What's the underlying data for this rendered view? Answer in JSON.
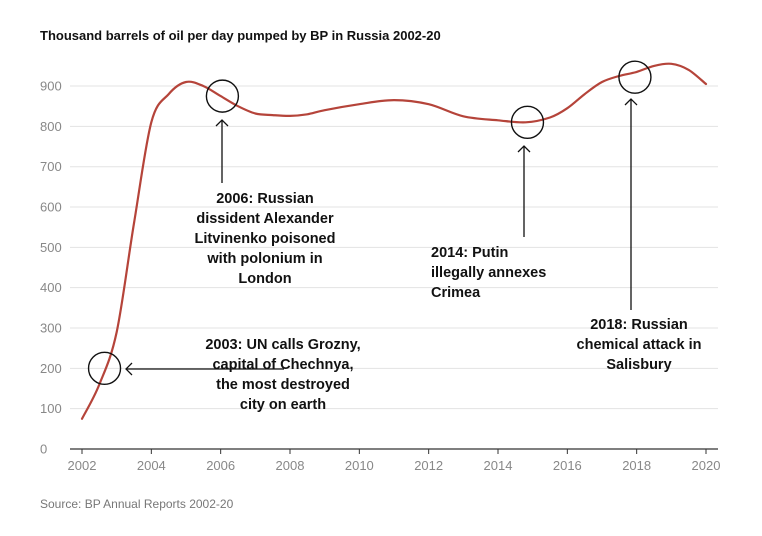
{
  "chart_data": {
    "type": "line",
    "title": "Thousand barrels of oil per day pumped by BP in Russia 2002-20",
    "source": "Source: BP Annual Reports 2002-20",
    "xlabel": "",
    "ylabel": "",
    "xlim": [
      2002,
      2020
    ],
    "ylim": [
      0,
      950
    ],
    "y_ticks": [
      "0",
      "100",
      "200",
      "300",
      "400",
      "500",
      "600",
      "700",
      "800",
      "900"
    ],
    "x_ticks": [
      "2002",
      "2004",
      "2006",
      "2008",
      "2010",
      "2012",
      "2014",
      "2016",
      "2018",
      "2020"
    ],
    "grid": true,
    "legend": "none",
    "colors": {
      "line": "#b5443a",
      "grid": "#e3e3e3",
      "baseline": "#333333"
    },
    "series": [
      {
        "x": [
          2002,
          2002.5,
          2003,
          2003.5,
          2004,
          2004.5,
          2005,
          2005.5,
          2006,
          2006.5,
          2007,
          2007.5,
          2008,
          2008.5,
          2009,
          2010,
          2011,
          2012,
          2013,
          2014,
          2014.8,
          2015.5,
          2016,
          2016.5,
          2017,
          2017.5,
          2018,
          2018.5,
          2019,
          2019.5,
          2020
        ],
        "y": [
          75,
          160,
          290,
          560,
          810,
          880,
          910,
          900,
          875,
          850,
          832,
          828,
          826,
          830,
          840,
          855,
          865,
          855,
          825,
          815,
          810,
          822,
          845,
          880,
          910,
          925,
          935,
          950,
          955,
          940,
          905
        ]
      }
    ],
    "annotations": [
      {
        "lines": [
          "2003: UN calls Grozny,",
          "capital of Chechnya,",
          "the most destroyed",
          "city on earth"
        ],
        "x": 2002.65,
        "y": 200
      },
      {
        "lines": [
          "2006: Russian",
          "dissident Alexander",
          "Litvinenko poisoned",
          "with polonium in",
          "London"
        ],
        "x": 2006.05,
        "y": 875
      },
      {
        "lines": [
          "2014: Putin",
          "illegally annexes",
          "Crimea"
        ],
        "x": 2014.85,
        "y": 810
      },
      {
        "lines": [
          "2018: Russian",
          "chemical attack in",
          "Salisbury"
        ],
        "x": 2017.95,
        "y": 922
      }
    ]
  }
}
